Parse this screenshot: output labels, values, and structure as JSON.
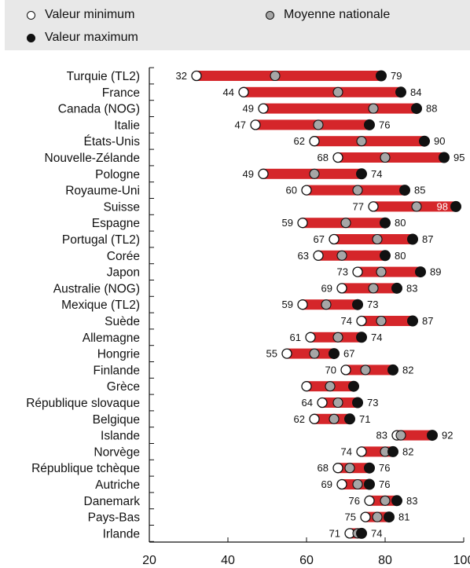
{
  "legend": {
    "min_label": "Valeur minimum",
    "avg_label": "Moyenne nationale",
    "max_label": "Valeur maximum"
  },
  "colors": {
    "bar": "#d5262a",
    "min_fill": "#ffffff",
    "avg_fill": "#a6a6a6",
    "max_fill": "#111111",
    "legend_bg": "#e8e8e8"
  },
  "chart_data": {
    "type": "range-dot",
    "xlim": [
      20,
      100
    ],
    "xticks": [
      20,
      40,
      60,
      80,
      100
    ],
    "rows": [
      {
        "country": "Turquie (TL2)",
        "min": 32,
        "avg": 52,
        "max": 79,
        "min_label": "32",
        "max_label": "79"
      },
      {
        "country": "France",
        "min": 44,
        "avg": 68,
        "max": 84,
        "min_label": "44",
        "max_label": "84"
      },
      {
        "country": "Canada (NOG)",
        "min": 49,
        "avg": 77,
        "max": 88,
        "min_label": "49",
        "max_label": "88"
      },
      {
        "country": "Italie",
        "min": 47,
        "avg": 63,
        "max": 76,
        "min_label": "47",
        "max_label": "76"
      },
      {
        "country": "États-Unis",
        "min": 62,
        "avg": 74,
        "max": 90,
        "min_label": "62",
        "max_label": "90"
      },
      {
        "country": "Nouvelle-Zélande",
        "min": 68,
        "avg": 80,
        "max": 95,
        "min_label": "68",
        "max_label": "95"
      },
      {
        "country": "Pologne",
        "min": 49,
        "avg": 62,
        "max": 74,
        "min_label": "49",
        "max_label": "74"
      },
      {
        "country": "Royaume-Uni",
        "min": 60,
        "avg": 73,
        "max": 85,
        "min_label": "60",
        "max_label": "85"
      },
      {
        "country": "Suisse",
        "min": 77,
        "avg": 88,
        "max": 98,
        "min_label": "77",
        "max_label": "98"
      },
      {
        "country": "Espagne",
        "min": 59,
        "avg": 70,
        "max": 80,
        "min_label": "59",
        "max_label": "80"
      },
      {
        "country": "Portugal (TL2)",
        "min": 67,
        "avg": 78,
        "max": 87,
        "min_label": "67",
        "max_label": "87"
      },
      {
        "country": "Corée",
        "min": 63,
        "avg": 69,
        "max": 80,
        "min_label": "63",
        "max_label": "80"
      },
      {
        "country": "Japon",
        "min": 73,
        "avg": 79,
        "max": 89,
        "min_label": "73",
        "max_label": "89"
      },
      {
        "country": "Australie (NOG)",
        "min": 69,
        "avg": 77,
        "max": 83,
        "min_label": "69",
        "max_label": "83"
      },
      {
        "country": "Mexique (TL2)",
        "min": 59,
        "avg": 65,
        "max": 73,
        "min_label": "59",
        "max_label": "73"
      },
      {
        "country": "Suède",
        "min": 74,
        "avg": 79,
        "max": 87,
        "min_label": "74",
        "max_label": "87"
      },
      {
        "country": "Allemagne",
        "min": 61,
        "avg": 68,
        "max": 74,
        "min_label": "61",
        "max_label": "74"
      },
      {
        "country": "Hongrie",
        "min": 55,
        "avg": 62,
        "max": 67,
        "min_label": "55",
        "max_label": "67"
      },
      {
        "country": "Finlande",
        "min": 70,
        "avg": 75,
        "max": 82,
        "min_label": "70",
        "max_label": "82"
      },
      {
        "country": "Grèce",
        "min": 60,
        "avg": 66,
        "max": 72,
        "min_label": "",
        "max_label": ""
      },
      {
        "country": "République slovaque",
        "min": 64,
        "avg": 68,
        "max": 73,
        "min_label": "64",
        "max_label": "73"
      },
      {
        "country": "Belgique",
        "min": 62,
        "avg": 67,
        "max": 71,
        "min_label": "62",
        "max_label": "71"
      },
      {
        "country": "Islande",
        "min": 83,
        "avg": 84,
        "max": 92,
        "min_label": "83",
        "max_label": "92"
      },
      {
        "country": "Norvège",
        "min": 74,
        "avg": 80,
        "max": 82,
        "min_label": "74",
        "max_label": "82"
      },
      {
        "country": "République tchèque",
        "min": 68,
        "avg": 71,
        "max": 76,
        "min_label": "68",
        "max_label": "76"
      },
      {
        "country": "Autriche",
        "min": 69,
        "avg": 73,
        "max": 76,
        "min_label": "69",
        "max_label": "76"
      },
      {
        "country": "Danemark",
        "min": 76,
        "avg": 80,
        "max": 83,
        "min_label": "76",
        "max_label": "83"
      },
      {
        "country": "Pays-Bas",
        "min": 75,
        "avg": 78,
        "max": 81,
        "min_label": "75",
        "max_label": "81"
      },
      {
        "country": "Irlande",
        "min": 71,
        "avg": 73,
        "max": 74,
        "min_label": "71",
        "max_label": "74"
      }
    ]
  }
}
